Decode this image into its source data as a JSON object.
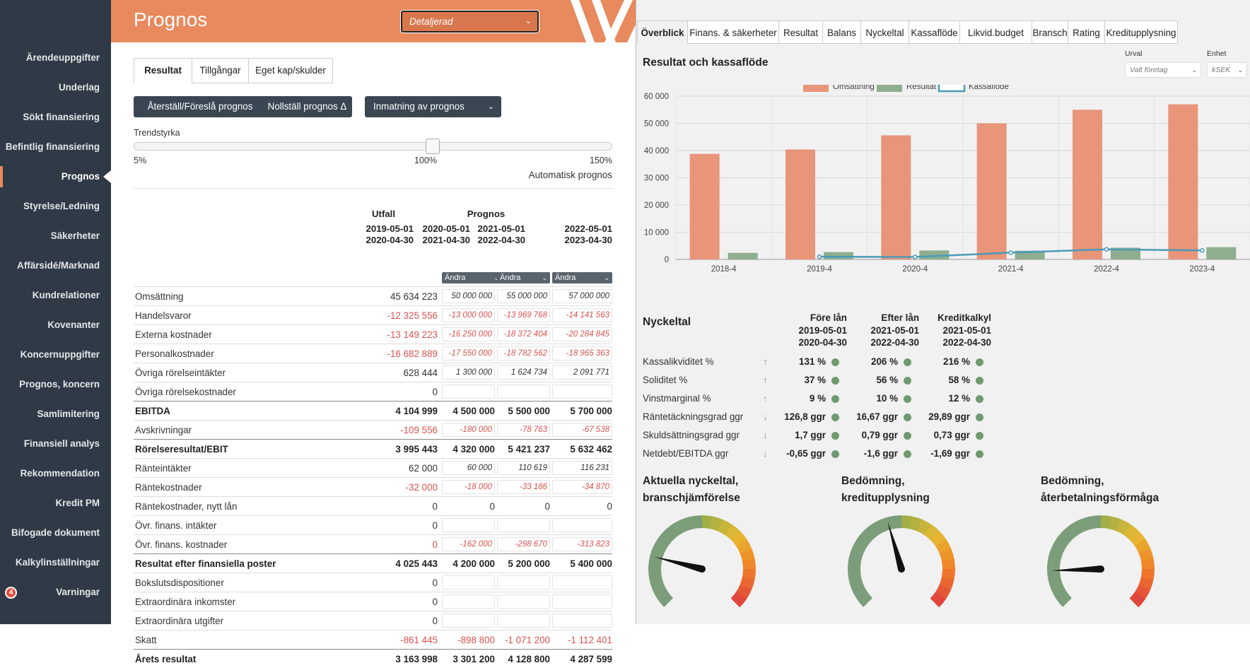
{
  "sidebar": {
    "items": [
      {
        "label": "Ärendeuppgifter"
      },
      {
        "label": "Underlag"
      },
      {
        "label": "Sökt finansiering"
      },
      {
        "label": "Befintlig finansiering"
      },
      {
        "label": "Prognos"
      },
      {
        "label": "Styrelse/Ledning"
      },
      {
        "label": "Säkerheter"
      },
      {
        "label": "Affärsidé/Marknad"
      },
      {
        "label": "Kundrelationer"
      },
      {
        "label": "Kovenanter"
      },
      {
        "label": "Koncernuppgifter"
      },
      {
        "label": "Prognos, koncern"
      },
      {
        "label": "Samlimitering"
      },
      {
        "label": "Finansiell analys"
      },
      {
        "label": "Rekommendation"
      },
      {
        "label": "Kredit PM"
      },
      {
        "label": "Bifogade dokument"
      },
      {
        "label": "Kalkylinställningar"
      },
      {
        "label": "Varningar"
      }
    ],
    "active_index": 4,
    "warnings_badge": "4"
  },
  "header": {
    "title": "Prognos",
    "view_select": "Detaljerad",
    "color": "#e8895e"
  },
  "left": {
    "tabs": [
      {
        "label": "Resultat"
      },
      {
        "label": "Tillgångar"
      },
      {
        "label": "Eget kap/skulder"
      }
    ],
    "buttons": {
      "reset": "Återställ/Föreslå prognos",
      "zero": "Nollställ prognos Δ",
      "input": "Inmatning av prognos"
    },
    "slider": {
      "label": "Trendstyrka",
      "min": "5%",
      "mid": "100%",
      "max": "150%",
      "value_percent": 100
    },
    "auto_label": "Automatisk prognos",
    "table": {
      "group_utfall": "Utfall",
      "group_prognos": "Prognos",
      "periods": [
        {
          "from": "2019-05-01",
          "to": "2020-04-30"
        },
        {
          "from": "2020-05-01",
          "to": "2021-04-30"
        },
        {
          "from": "2021-05-01",
          "to": "2022-04-30"
        },
        {
          "from": "2022-05-01",
          "to": "2023-04-30"
        }
      ],
      "andra_label": "Ändra",
      "rows": [
        {
          "label": "Omsättning",
          "values": [
            "45 634 223",
            "50 000 000",
            "55 000 000",
            "57 000 000"
          ],
          "style": "input",
          "neg": false
        },
        {
          "label": "Handelsvaror",
          "values": [
            "-12 325 556",
            "-13 000 000",
            "-13 969 768",
            "-14 141 563"
          ],
          "style": "input",
          "neg": true
        },
        {
          "label": "Externa kostnader",
          "values": [
            "-13 149 223",
            "-16 250 000",
            "-18 372 404",
            "-20 284 845"
          ],
          "style": "input",
          "neg": true
        },
        {
          "label": "Personalkostnader",
          "values": [
            "-16 682 889",
            "-17 550 000",
            "-18 782 562",
            "-18 965 363"
          ],
          "style": "input",
          "neg": true
        },
        {
          "label": "Övriga rörelseintäkter",
          "values": [
            "628 444",
            "1 300 000",
            "1 624 734",
            "2 091 771"
          ],
          "style": "input",
          "neg": false
        },
        {
          "label": "Övriga rörelsekostnader",
          "values": [
            "0",
            "",
            "",
            ""
          ],
          "style": "input",
          "neg": false
        },
        {
          "label": "EBITDA",
          "values": [
            "4 104 999",
            "4 500 000",
            "5 500 000",
            "5 700 000"
          ],
          "style": "total",
          "neg": false
        },
        {
          "label": "Avskrivningar",
          "values": [
            "-109 556",
            "-180 000",
            "-78 763",
            "-67 538"
          ],
          "style": "input",
          "neg": true
        },
        {
          "label": "Rörelseresultat/EBIT",
          "values": [
            "3 995 443",
            "4 320 000",
            "5 421 237",
            "5 632 462"
          ],
          "style": "total",
          "neg": false
        },
        {
          "label": "Ränteintäkter",
          "values": [
            "62 000",
            "60 000",
            "110 619",
            "116 231"
          ],
          "style": "input",
          "neg": false
        },
        {
          "label": "Räntekostnader",
          "values": [
            "-32 000",
            "-18 000",
            "-33 186",
            "-34 870"
          ],
          "style": "input",
          "neg": true
        },
        {
          "label": "Räntekostnader, nytt lån",
          "values": [
            "0",
            "0",
            "0",
            "0"
          ],
          "style": "plain",
          "neg": false
        },
        {
          "label": "Övr. finans. intäkter",
          "values": [
            "0",
            "",
            "",
            ""
          ],
          "style": "input",
          "neg": false
        },
        {
          "label": "Övr. finans. kostnader",
          "values": [
            "0",
            "-162 000",
            "-298 670",
            "-313 823"
          ],
          "style": "input",
          "neg": true
        },
        {
          "label": "Resultat efter finansiella poster",
          "values": [
            "4 025 443",
            "4 200 000",
            "5 200 000",
            "5 400 000"
          ],
          "style": "total",
          "neg": false
        },
        {
          "label": "Bokslutsdispositioner",
          "values": [
            "0",
            "",
            "",
            ""
          ],
          "style": "input",
          "neg": false
        },
        {
          "label": "Extraordinära inkomster",
          "values": [
            "0",
            "",
            "",
            ""
          ],
          "style": "input",
          "neg": false
        },
        {
          "label": "Extraordinära utgifter",
          "values": [
            "0",
            "",
            "",
            ""
          ],
          "style": "input",
          "neg": false
        },
        {
          "label": "Skatt",
          "values": [
            "-861 445",
            "-898 800",
            "-1 071 200",
            "-1 112 401"
          ],
          "style": "plainneg",
          "neg": true
        },
        {
          "label": "Årets resultat",
          "values": [
            "3 163 998",
            "3 301 200",
            "4 128 800",
            "4 287 599"
          ],
          "style": "total",
          "neg": false
        }
      ]
    }
  },
  "right": {
    "tabs": [
      {
        "label": "Överblick"
      },
      {
        "label": "Finans. & säkerheter"
      },
      {
        "label": "Resultat"
      },
      {
        "label": "Balans"
      },
      {
        "label": "Nyckeltal"
      },
      {
        "label": "Kassaflöde"
      },
      {
        "label": "Likvid.budget"
      },
      {
        "label": "Bransch"
      },
      {
        "label": "Rating"
      },
      {
        "label": "Kreditupplysning"
      }
    ],
    "chart_title": "Resultat och kassaflöde",
    "urval_label": "Urval",
    "urval_value": "Valt företag",
    "enhet_label": "Enhet",
    "enhet_value": "kSEK",
    "nyckeltal_title": "Nyckeltal",
    "kt_headers": [
      {
        "title": "Före lån",
        "from": "2019-05-01",
        "to": "2020-04-30"
      },
      {
        "title": "Efter lån",
        "from": "2021-05-01",
        "to": "2022-04-30"
      },
      {
        "title": "Kreditkalkyl",
        "from": "2021-05-01",
        "to": "2022-04-30"
      }
    ],
    "kt_rows": [
      {
        "label": "Kassalikviditet %",
        "trend": "up",
        "values": [
          "131 %",
          "206 %",
          "216 %"
        ]
      },
      {
        "label": "Soliditet %",
        "trend": "up",
        "values": [
          "37 %",
          "56 %",
          "58 %"
        ]
      },
      {
        "label": "Vinstmarginal %",
        "trend": "up",
        "values": [
          "9 %",
          "10 %",
          "12 %"
        ]
      },
      {
        "label": "Räntetäckningsgrad ggr",
        "trend": "down",
        "values": [
          "126,8 ggr",
          "16,67 ggr",
          "29,89 ggr"
        ]
      },
      {
        "label": "Skuldsättningsgrad ggr",
        "trend": "down",
        "values": [
          "1,7 ggr",
          "0,79 ggr",
          "0,73 ggr"
        ]
      },
      {
        "label": "Netdebt/EBITDA ggr",
        "trend": "down",
        "values": [
          "-0,65 ggr",
          "-1,6 ggr",
          "-1,69 ggr"
        ]
      }
    ],
    "status_color": "#6f9a6f",
    "gauges": [
      {
        "title_line1": "Aktuella nyckeltal,",
        "title_line2": "branschjämförelse",
        "needle_fraction": 0.22
      },
      {
        "title_line1": "Bedömning,",
        "title_line2": "kreditupplysning",
        "needle_fraction": 0.44
      },
      {
        "title_line1": "Bedömning,",
        "title_line2": "återbetalningsförmåga",
        "needle_fraction": 0.16
      }
    ]
  },
  "chart_data": {
    "type": "bar",
    "title": "Resultat och kassaflöde",
    "categories": [
      "2018-4",
      "2019-4",
      "2020-4",
      "2021-4",
      "2022-4",
      "2023-4"
    ],
    "series": [
      {
        "name": "Omsättning",
        "type": "bar",
        "color": "#e8957a",
        "values": [
          38800,
          40400,
          45600,
          50000,
          55000,
          57000
        ]
      },
      {
        "name": "Resultat",
        "type": "bar",
        "color": "#8fae8f",
        "values": [
          2400,
          2700,
          3300,
          3200,
          4300,
          4500
        ]
      },
      {
        "name": "Kassaflöde",
        "type": "line",
        "color": "#4a9bb8",
        "values": [
          null,
          1000,
          900,
          2500,
          3700,
          3300
        ]
      }
    ],
    "ylim": [
      0,
      60000
    ],
    "yticks": [
      "0",
      "10 000",
      "20 000",
      "30 000",
      "40 000",
      "50 000",
      "60 000"
    ],
    "legend": "top-center",
    "grid": true
  }
}
